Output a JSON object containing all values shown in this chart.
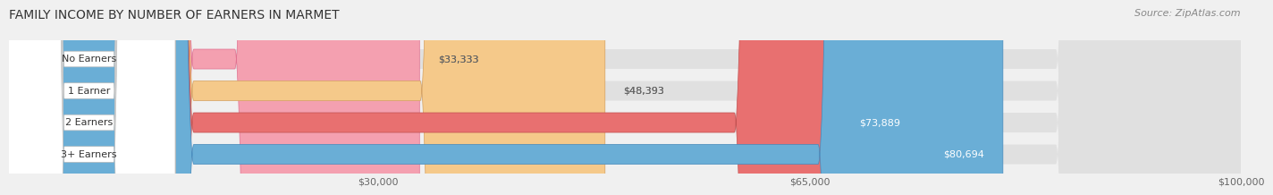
{
  "title": "FAMILY INCOME BY NUMBER OF EARNERS IN MARMET",
  "source": "Source: ZipAtlas.com",
  "categories": [
    "No Earners",
    "1 Earner",
    "2 Earners",
    "3+ Earners"
  ],
  "values": [
    33333,
    48393,
    73889,
    80694
  ],
  "bar_colors": [
    "#f4a0b0",
    "#f5c98a",
    "#e87070",
    "#6aaed6"
  ],
  "bar_edge_colors": [
    "#e07090",
    "#d4a060",
    "#c05050",
    "#4488bb"
  ],
  "label_colors": [
    "#555555",
    "#555555",
    "#ffffff",
    "#ffffff"
  ],
  "xmin": 0,
  "xmax": 100000,
  "xticks": [
    30000,
    65000,
    100000
  ],
  "xticklabels": [
    "$30,000",
    "$65,000",
    "$100,000"
  ],
  "background_color": "#f0f0f0",
  "bar_bg_color": "#e8e8e8",
  "title_fontsize": 10,
  "source_fontsize": 8,
  "label_fontsize": 8,
  "tick_fontsize": 8
}
